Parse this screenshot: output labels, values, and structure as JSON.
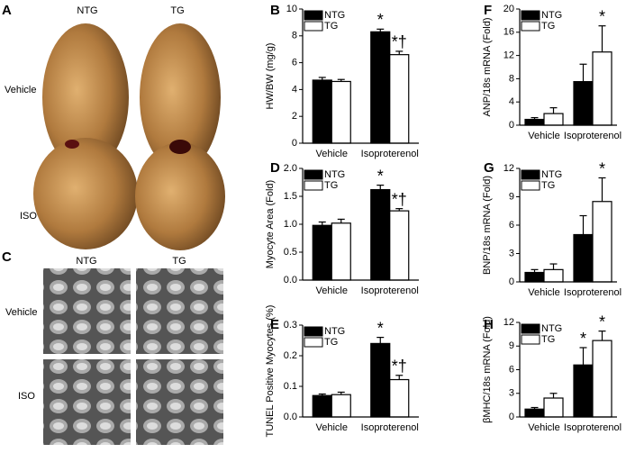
{
  "figure": {
    "panel_labels": [
      "A",
      "B",
      "C",
      "D",
      "E",
      "F",
      "G",
      "H"
    ],
    "panel_a": {
      "columns": [
        "NTG",
        "TG"
      ],
      "rows": [
        "Vehicle",
        "ISO"
      ]
    },
    "panel_c": {
      "columns": [
        "NTG",
        "TG"
      ],
      "rows": [
        "Vehicle",
        "ISO"
      ]
    }
  },
  "chart_data": [
    {
      "type": "bar",
      "ylabel": "HW/BW (mg/g)",
      "categories": [
        "Vehicle",
        "Isoproterenol"
      ],
      "legend": "upper left",
      "series": [
        {
          "name": "NTG",
          "color": "#000000",
          "values": [
            4.7,
            8.3
          ],
          "errors": [
            0.2,
            0.2
          ],
          "annotations": [
            null,
            "*"
          ]
        },
        {
          "name": "TG",
          "color": "#ffffff",
          "values": [
            4.6,
            6.6
          ],
          "errors": [
            0.15,
            0.25
          ],
          "annotations": [
            null,
            "*†"
          ]
        }
      ],
      "ylim": [
        0,
        10
      ],
      "yticks": [
        0,
        2,
        4,
        6,
        8,
        10
      ]
    },
    {
      "type": "bar",
      "ylabel": "Myocyte Area (Fold)",
      "categories": [
        "Vehicle",
        "Isoproterenol"
      ],
      "legend": "upper left",
      "series": [
        {
          "name": "NTG",
          "color": "#000000",
          "values": [
            0.98,
            1.62
          ],
          "errors": [
            0.06,
            0.08
          ],
          "annotations": [
            null,
            "*"
          ]
        },
        {
          "name": "TG",
          "color": "#ffffff",
          "values": [
            1.02,
            1.24
          ],
          "errors": [
            0.07,
            0.04
          ],
          "annotations": [
            null,
            "*†"
          ]
        }
      ],
      "ylim": [
        0,
        2
      ],
      "yticks": [
        {
          "value": 0,
          "label": "0.0"
        },
        0.5,
        {
          "value": 1,
          "label": "1.0"
        },
        1.5,
        {
          "value": 2,
          "label": "2.0"
        }
      ]
    },
    {
      "type": "bar",
      "ylabel": "TUNEL Positive Myocytes (%)",
      "categories": [
        "Vehicle",
        "Isoproterenol"
      ],
      "legend": "upper left",
      "series": [
        {
          "name": "NTG",
          "color": "#000000",
          "values": [
            0.07,
            0.24
          ],
          "errors": [
            0.005,
            0.02
          ],
          "annotations": [
            null,
            "*"
          ]
        },
        {
          "name": "TG",
          "color": "#ffffff",
          "values": [
            0.073,
            0.122
          ],
          "errors": [
            0.008,
            0.014
          ],
          "annotations": [
            null,
            "*†"
          ]
        }
      ],
      "ylim": [
        0,
        0.3
      ],
      "yticks": [
        {
          "value": 0,
          "label": "0.0"
        },
        0.1,
        0.2,
        0.3
      ]
    },
    {
      "type": "bar",
      "ylabel": "ANP/18s mRNA (Fold)",
      "categories": [
        "Vehicle",
        "Isoproterenol"
      ],
      "legend": "upper left",
      "series": [
        {
          "name": "NTG",
          "color": "#000000",
          "values": [
            1.0,
            7.5
          ],
          "errors": [
            0.3,
            3.0
          ],
          "annotations": [
            null,
            null
          ]
        },
        {
          "name": "TG",
          "color": "#ffffff",
          "values": [
            2.0,
            12.6
          ],
          "errors": [
            1.0,
            4.5
          ],
          "annotations": [
            null,
            "*"
          ]
        }
      ],
      "ylim": [
        0,
        20
      ],
      "yticks": [
        0,
        4,
        8,
        12,
        16,
        20
      ]
    },
    {
      "type": "bar",
      "ylabel": "BNP/18s mRNA (Fold)",
      "categories": [
        "Vehicle",
        "Isoproterenol"
      ],
      "legend": "upper left",
      "series": [
        {
          "name": "NTG",
          "color": "#000000",
          "values": [
            1.0,
            5.0
          ],
          "errors": [
            0.3,
            2.0
          ],
          "annotations": [
            null,
            null
          ]
        },
        {
          "name": "TG",
          "color": "#ffffff",
          "values": [
            1.3,
            8.5
          ],
          "errors": [
            0.6,
            2.5
          ],
          "annotations": [
            null,
            "*"
          ]
        }
      ],
      "ylim": [
        0,
        12
      ],
      "yticks": [
        0,
        3,
        6,
        9,
        12
      ]
    },
    {
      "type": "bar",
      "ylabel": "βMHC/18s mRNA (Fold)",
      "categories": [
        "Vehicle",
        "Isoproterenol"
      ],
      "legend": "upper left",
      "series": [
        {
          "name": "NTG",
          "color": "#000000",
          "values": [
            1.0,
            6.6
          ],
          "errors": [
            0.2,
            2.2
          ],
          "annotations": [
            null,
            "*"
          ]
        },
        {
          "name": "TG",
          "color": "#ffffff",
          "values": [
            2.4,
            9.7
          ],
          "errors": [
            0.6,
            1.2
          ],
          "annotations": [
            null,
            "*"
          ]
        }
      ],
      "ylim": [
        0,
        12
      ],
      "yticks": [
        0,
        3,
        6,
        9,
        12
      ]
    }
  ]
}
